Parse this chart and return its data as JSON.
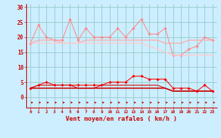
{
  "x": [
    0,
    1,
    2,
    3,
    4,
    5,
    6,
    7,
    8,
    9,
    10,
    11,
    12,
    13,
    14,
    15,
    16,
    17,
    18,
    19,
    20,
    21,
    22,
    23
  ],
  "series": [
    {
      "name": "rafales_spiky",
      "y": [
        18,
        24,
        20,
        19,
        19,
        26,
        19,
        23,
        20,
        20,
        20,
        23,
        20,
        23,
        26,
        21,
        21,
        23,
        14,
        14,
        16,
        17,
        20,
        19
      ],
      "color": "#ff8888",
      "lw": 0.8,
      "marker": "D",
      "ms": 2.0
    },
    {
      "name": "moyen_upper",
      "y": [
        18,
        19,
        19,
        19,
        18,
        18,
        18,
        19,
        19,
        19,
        19,
        19,
        19,
        19,
        19,
        19,
        19,
        18,
        18,
        18,
        19,
        19,
        19,
        19
      ],
      "color": "#ffaaaa",
      "lw": 1.0,
      "marker": null,
      "ms": 0
    },
    {
      "name": "moyen_lower",
      "y": [
        18,
        18,
        18,
        18,
        18,
        18,
        18,
        18,
        18,
        18,
        18,
        18,
        18,
        18,
        18,
        17,
        16,
        15,
        14,
        14,
        14,
        14,
        14,
        14
      ],
      "color": "#ffcccc",
      "lw": 1.0,
      "marker": null,
      "ms": 0
    },
    {
      "name": "vent_spiky",
      "y": [
        3,
        4,
        5,
        4,
        4,
        4,
        4,
        4,
        4,
        4,
        5,
        5,
        5,
        7,
        7,
        6,
        6,
        6,
        3,
        3,
        3,
        2,
        4,
        2
      ],
      "color": "#ff0000",
      "lw": 0.8,
      "marker": "D",
      "ms": 2.0
    },
    {
      "name": "vent_mid",
      "y": [
        3,
        4,
        4,
        4,
        4,
        4,
        3,
        3,
        3,
        4,
        4,
        4,
        4,
        4,
        4,
        4,
        4,
        3,
        2,
        2,
        2,
        2,
        2,
        2
      ],
      "color": "#dd0000",
      "lw": 0.8,
      "marker": null,
      "ms": 0
    },
    {
      "name": "vent_base",
      "y": [
        3,
        3,
        3,
        3,
        3,
        3,
        3,
        3,
        3,
        3,
        3,
        3,
        3,
        3,
        3,
        3,
        3,
        3,
        2,
        2,
        2,
        2,
        2,
        2
      ],
      "color": "#cc0000",
      "lw": 1.2,
      "marker": null,
      "ms": 0
    }
  ],
  "xlabel": "Vent moyen/en rafales ( km/h )",
  "ylim": [
    0,
    30
  ],
  "yticks": [
    0,
    5,
    10,
    15,
    20,
    25,
    30
  ],
  "bg_color": "#cceeff",
  "grid_color": "#99cccc",
  "label_color": "#cc0000",
  "arrow_color": "#cc0000"
}
